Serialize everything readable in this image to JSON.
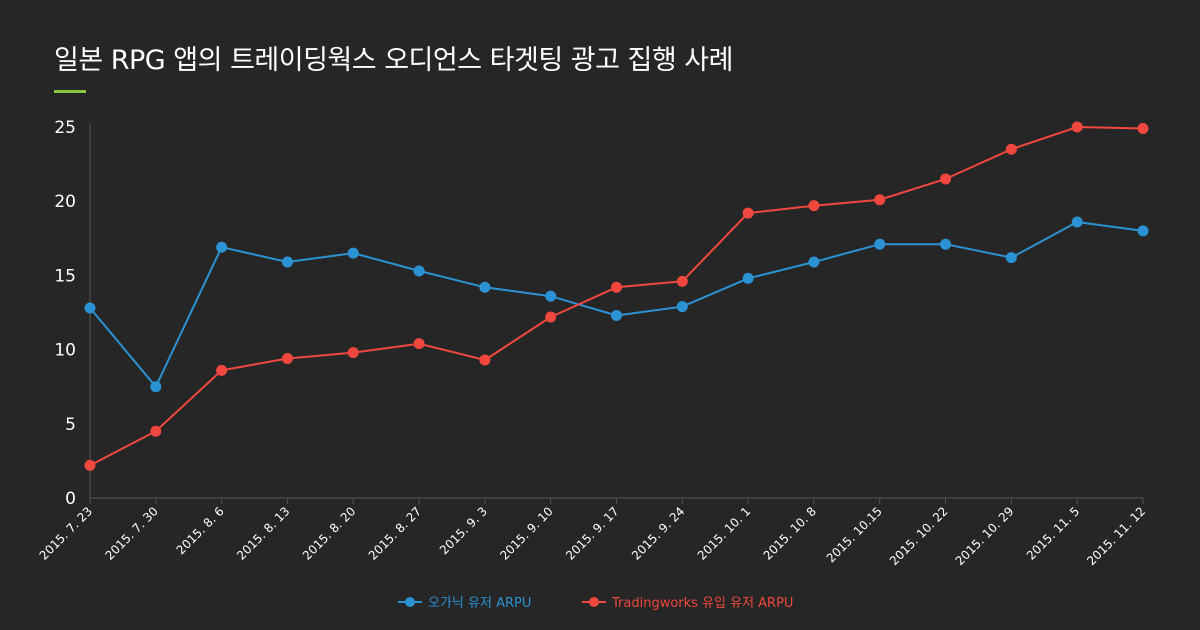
{
  "header": {
    "title": "일본 RPG 앱의 트레이딩웍스 오디언스 타겟팅 광고 집행 사례"
  },
  "colors": {
    "background": "#262626",
    "accent": "#8cc63f",
    "series_organic": "#2b92d4",
    "series_trading": "#f0483e",
    "axis": "#555555"
  },
  "chart_data": {
    "type": "line",
    "title": "일본 RPG 앱의 트레이딩웍스 오디언스 타겟팅 광고 집행 사례",
    "xlabel": "",
    "ylabel": "",
    "ylim": [
      0,
      25
    ],
    "yticks": [
      "0",
      "5",
      "10",
      "15",
      "20",
      "25"
    ],
    "grid": false,
    "legend_position": "bottom",
    "categories": [
      "2015. 7. 23",
      "2015. 7. 30",
      "2015. 8. 6",
      "2015. 8. 13",
      "2015. 8. 20",
      "2015. 8. 27",
      "2015. 9. 3",
      "2015. 9. 10",
      "2015. 9. 17",
      "2015. 9. 24",
      "2015. 10. 1",
      "2015. 10. 8",
      "2015. 10.15",
      "2015. 10. 22",
      "2015. 10. 29",
      "2015. 11. 5",
      "2015. 11. 12"
    ],
    "series": [
      {
        "name": "오가닉 유저 ARPU",
        "color": "#2b92d4",
        "values": [
          12.8,
          7.5,
          16.9,
          15.9,
          16.5,
          15.3,
          14.2,
          13.6,
          12.3,
          12.9,
          14.8,
          15.9,
          17.1,
          17.1,
          16.2,
          18.6,
          18.0
        ]
      },
      {
        "name": "Tradingworks 유입 유저 ARPU",
        "color": "#f0483e",
        "values": [
          2.2,
          4.5,
          8.6,
          9.4,
          9.8,
          10.4,
          9.3,
          12.2,
          14.2,
          14.6,
          19.2,
          19.7,
          20.1,
          21.5,
          23.5,
          25.0,
          24.9
        ]
      }
    ]
  }
}
